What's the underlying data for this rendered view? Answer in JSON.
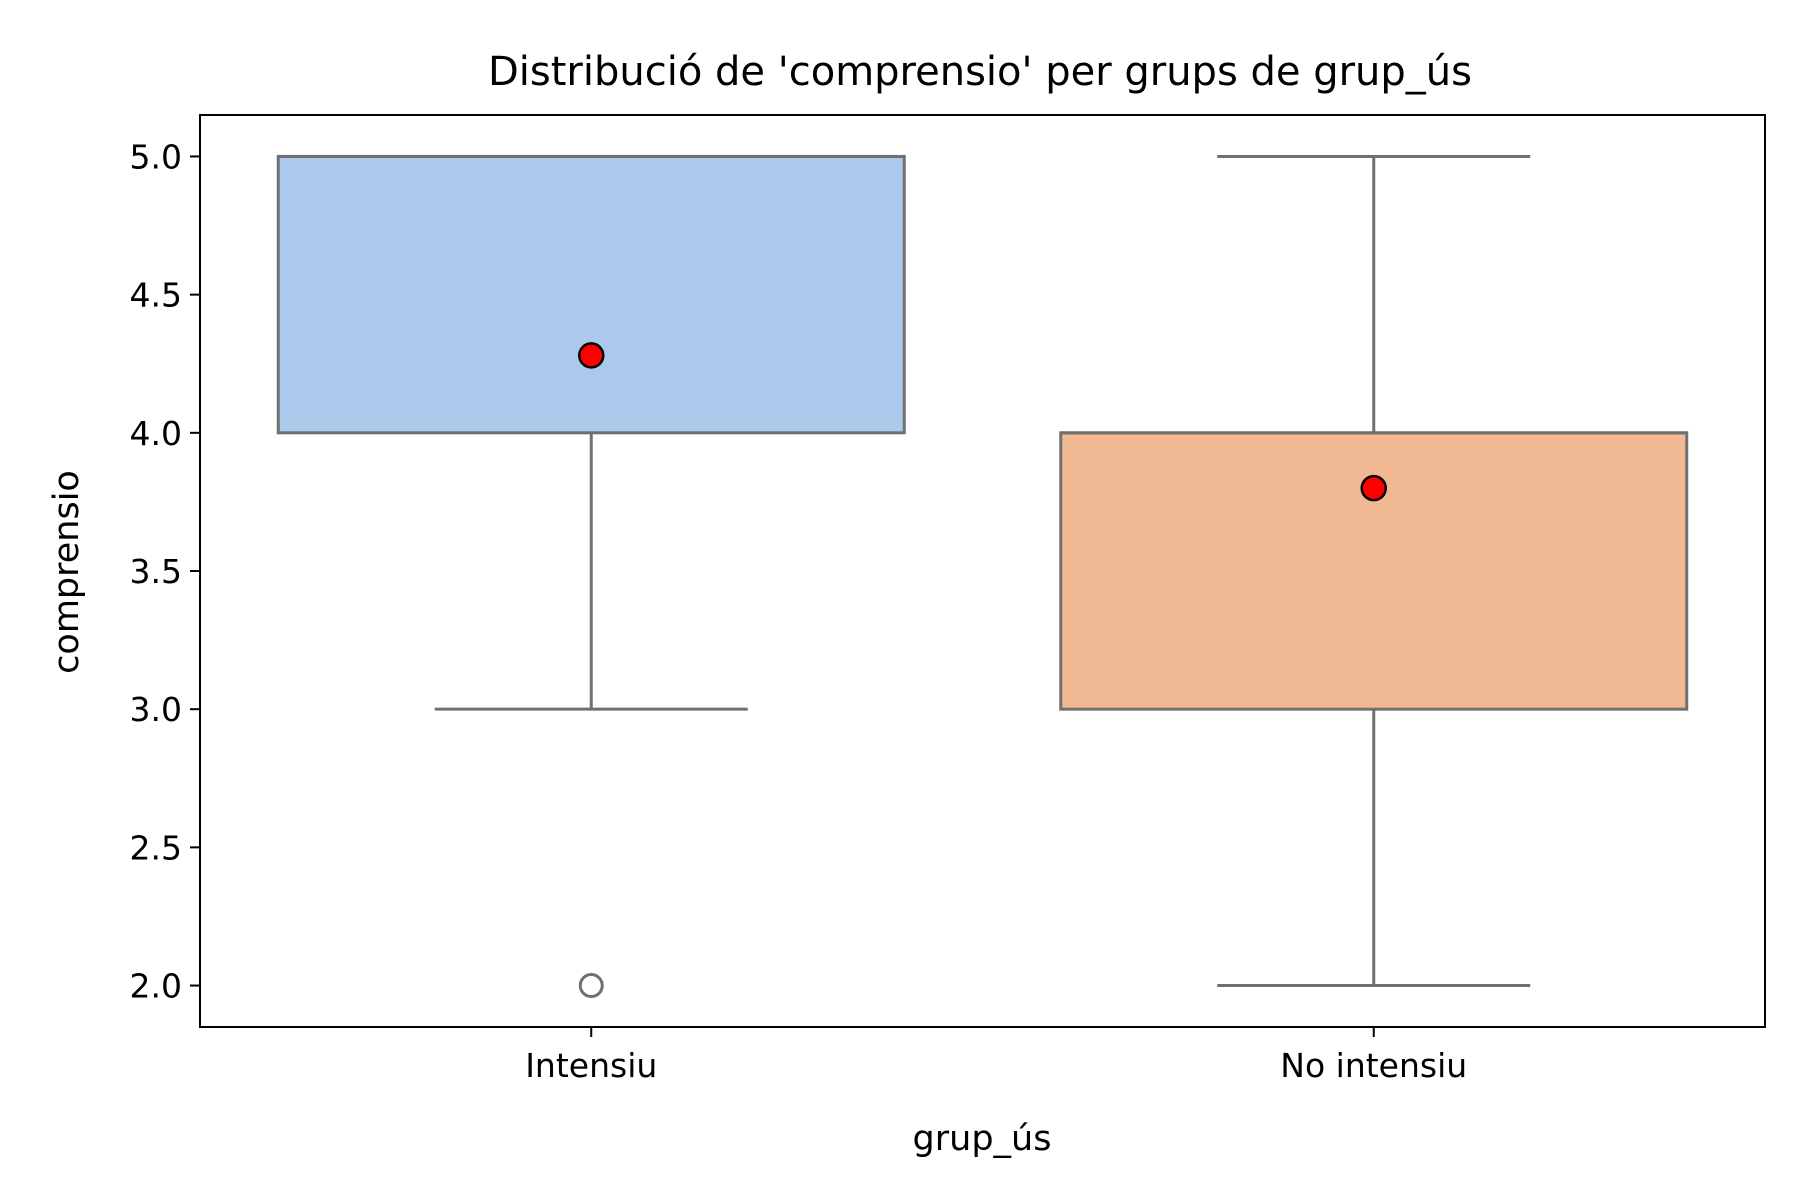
{
  "chart_data": {
    "type": "box",
    "title": "Distribució de 'comprensio' per grups de grup_ús",
    "xlabel": "grup_ús",
    "ylabel": "comprensio",
    "ylim": [
      1.85,
      5.15
    ],
    "yticks": [
      2.0,
      2.5,
      3.0,
      3.5,
      4.0,
      4.5,
      5.0
    ],
    "ytick_labels": [
      "2.0",
      "2.5",
      "3.0",
      "3.5",
      "4.0",
      "4.5",
      "5.0"
    ],
    "categories": [
      "Intensiu",
      "No intensiu"
    ],
    "boxes": [
      {
        "category": "Intensiu",
        "whisker_low": 3.0,
        "q1": 4.0,
        "median": 5.0,
        "q3": 5.0,
        "whisker_high": 5.0,
        "mean": 4.28,
        "outliers": [
          2.0
        ],
        "color": "#abc9eb"
      },
      {
        "category": "No intensiu",
        "whisker_low": 2.0,
        "q1": 3.0,
        "median": 4.0,
        "q3": 4.0,
        "whisker_high": 5.0,
        "mean": 3.8,
        "outliers": [],
        "color": "#f0b893"
      }
    ],
    "grid": false,
    "legend": false,
    "mean_marker_color": "#ff0000",
    "line_color": "#707070"
  }
}
